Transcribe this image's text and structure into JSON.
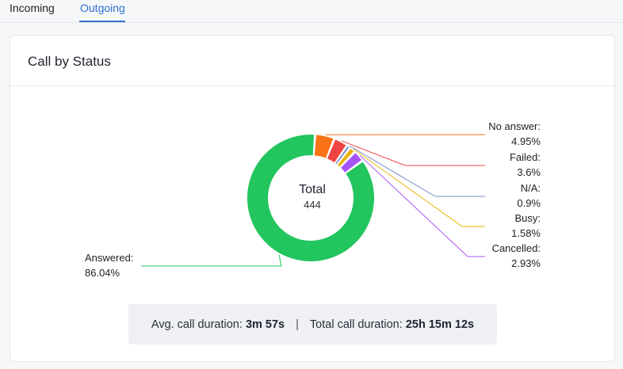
{
  "tabs": [
    {
      "label": "Incoming",
      "active": false
    },
    {
      "label": "Outgoing",
      "active": true
    }
  ],
  "colors": {
    "accent": "#2f6fd1"
  },
  "card": {
    "title": "Call by Status"
  },
  "summary": {
    "avg_label": "Avg. call duration:",
    "avg_value": "3m 57s",
    "separator": "|",
    "total_label": "Total call duration:",
    "total_value": "25h 15m 12s"
  },
  "chart_data": {
    "type": "pie",
    "donut": true,
    "center_label": "Total",
    "center_value": "444",
    "slices": [
      {
        "name": "Answered:",
        "value": 86.04,
        "value_label": "86.04%",
        "color": "#22c55e"
      },
      {
        "name": "No answer:",
        "value": 4.95,
        "value_label": "4.95%",
        "color": "#f97316"
      },
      {
        "name": "Failed:",
        "value": 3.6,
        "value_label": "3.6%",
        "color": "#ef4444"
      },
      {
        "name": "N/A:",
        "value": 0.9,
        "value_label": "0.9%",
        "color": "#7b8fc9"
      },
      {
        "name": "Busy:",
        "value": 1.58,
        "value_label": "1.58%",
        "color": "#eab308"
      },
      {
        "name": "Cancelled:",
        "value": 2.93,
        "value_label": "2.93%",
        "color": "#a855f7"
      }
    ],
    "legend": "leader-line labels"
  }
}
